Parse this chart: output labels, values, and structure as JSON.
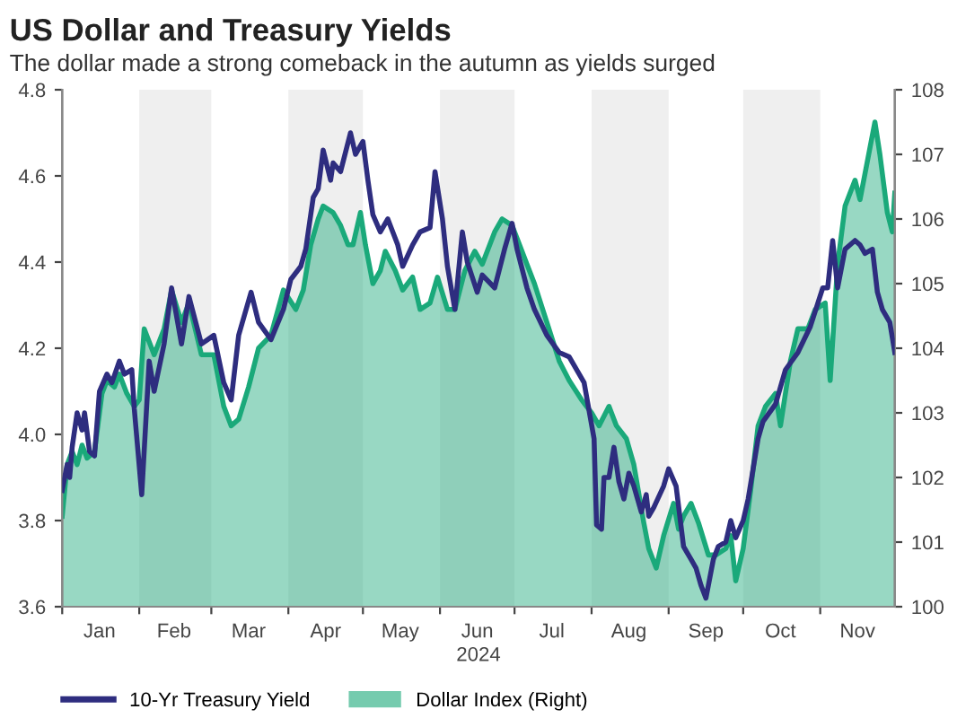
{
  "chart_data": {
    "type": "line",
    "title": "US Dollar and Treasury Yields",
    "subtitle": "The dollar made a strong comeback in the autumn as yields surged",
    "xlabel": "2024",
    "xlim": [
      "2024-01-01",
      "2024-12-01"
    ],
    "xticks": [
      {
        "value": "2024-01-01",
        "label": null
      },
      {
        "value": "2024-01-16",
        "label": "Jan"
      },
      {
        "value": "2024-02-01",
        "label": null
      },
      {
        "value": "2024-02-15",
        "label": "Feb"
      },
      {
        "value": "2024-03-01",
        "label": null
      },
      {
        "value": "2024-03-16",
        "label": "Mar"
      },
      {
        "value": "2024-04-01",
        "label": null
      },
      {
        "value": "2024-04-16",
        "label": "Apr"
      },
      {
        "value": "2024-05-01",
        "label": null
      },
      {
        "value": "2024-05-16",
        "label": "May"
      },
      {
        "value": "2024-06-01",
        "label": null
      },
      {
        "value": "2024-06-16",
        "label": "Jun"
      },
      {
        "value": "2024-07-01",
        "label": null
      },
      {
        "value": "2024-07-16",
        "label": "Jul"
      },
      {
        "value": "2024-08-01",
        "label": null
      },
      {
        "value": "2024-08-16",
        "label": "Aug"
      },
      {
        "value": "2024-09-01",
        "label": null
      },
      {
        "value": "2024-09-16",
        "label": "Sep"
      },
      {
        "value": "2024-10-01",
        "label": null
      },
      {
        "value": "2024-10-16",
        "label": "Oct"
      },
      {
        "value": "2024-11-01",
        "label": null
      },
      {
        "value": "2024-11-16",
        "label": "Nov"
      }
    ],
    "ylim": [
      3.6,
      4.8
    ],
    "yticks": [
      3.6,
      3.8,
      {
        "value": 4,
        "label": "4.0"
      },
      4.2,
      4.4,
      4.6,
      4.8
    ],
    "y2lim": [
      100,
      108
    ],
    "y2ticks": [
      100,
      101,
      102,
      103,
      104,
      105,
      106,
      107,
      108
    ],
    "grid": false,
    "legend": "bottom",
    "bands": [
      {
        "axis": "x",
        "from": "2024-02-01",
        "to": "2024-03-01",
        "color": "#efefef"
      },
      {
        "axis": "x",
        "from": "2024-04-01",
        "to": "2024-05-01",
        "color": "#efefef"
      },
      {
        "axis": "x",
        "from": "2024-06-01",
        "to": "2024-07-01",
        "color": "#efefef"
      },
      {
        "axis": "x",
        "from": "2024-08-01",
        "to": "2024-09-01",
        "color": "#efefef"
      },
      {
        "axis": "x",
        "from": "2024-10-01",
        "to": "2024-11-01",
        "color": "#efefef"
      }
    ],
    "series": [
      {
        "name": "10-Yr Treasury Yield",
        "color": "#2e2d7f",
        "x": [
          "2024-01-01",
          "2024-01-03",
          "2024-01-04",
          "2024-01-05",
          "2024-01-07",
          "2024-01-09",
          "2024-01-10",
          "2024-01-12",
          "2024-01-14",
          "2024-01-16",
          "2024-01-19",
          "2024-01-21",
          "2024-01-24",
          "2024-01-26",
          "2024-01-29",
          "2024-01-30",
          "2024-02-02",
          "2024-02-05",
          "2024-02-07",
          "2024-02-11",
          "2024-02-14",
          "2024-02-18",
          "2024-02-21",
          "2024-02-26",
          "2024-03-02",
          "2024-03-06",
          "2024-03-09",
          "2024-03-12",
          "2024-03-17",
          "2024-03-20",
          "2024-03-25",
          "2024-03-30",
          "2024-04-02",
          "2024-04-06",
          "2024-04-08",
          "2024-04-11",
          "2024-04-13",
          "2024-04-15",
          "2024-04-18",
          "2024-04-19",
          "2024-04-22",
          "2024-04-26",
          "2024-04-28",
          "2024-05-01",
          "2024-05-03",
          "2024-05-05",
          "2024-05-08",
          "2024-05-11",
          "2024-05-15",
          "2024-05-17",
          "2024-05-21",
          "2024-05-24",
          "2024-05-28",
          "2024-05-30",
          "2024-06-02",
          "2024-06-04",
          "2024-06-07",
          "2024-06-10",
          "2024-06-12",
          "2024-06-16",
          "2024-06-18",
          "2024-06-23",
          "2024-06-27",
          "2024-06-30",
          "2024-07-02",
          "2024-07-06",
          "2024-07-09",
          "2024-07-14",
          "2024-07-19",
          "2024-07-23",
          "2024-07-29",
          "2024-08-02",
          "2024-08-03",
          "2024-08-05",
          "2024-08-06",
          "2024-08-08",
          "2024-08-10",
          "2024-08-12",
          "2024-08-14",
          "2024-08-16",
          "2024-08-18",
          "2024-08-21",
          "2024-08-23",
          "2024-08-24",
          "2024-08-26",
          "2024-08-30",
          "2024-09-01",
          "2024-09-04",
          "2024-09-07",
          "2024-09-10",
          "2024-09-12",
          "2024-09-14",
          "2024-09-16",
          "2024-09-19",
          "2024-09-21",
          "2024-09-24",
          "2024-09-26",
          "2024-09-28",
          "2024-10-01",
          "2024-10-03",
          "2024-10-07",
          "2024-10-09",
          "2024-10-14",
          "2024-10-18",
          "2024-10-23",
          "2024-10-28",
          "2024-11-02",
          "2024-11-04",
          "2024-11-06",
          "2024-11-08",
          "2024-11-11",
          "2024-11-15",
          "2024-11-17",
          "2024-11-19",
          "2024-11-22",
          "2024-11-24",
          "2024-11-26",
          "2024-11-29",
          "2024-12-01"
        ],
        "values": [
          3.87,
          3.93,
          3.9,
          3.97,
          4.05,
          4.01,
          4.05,
          3.96,
          3.95,
          4.1,
          4.14,
          4.12,
          4.17,
          4.14,
          4.15,
          4.06,
          3.86,
          4.17,
          4.1,
          4.21,
          4.34,
          4.21,
          4.32,
          4.21,
          4.23,
          4.12,
          4.08,
          4.23,
          4.33,
          4.26,
          4.22,
          4.29,
          4.36,
          4.39,
          4.43,
          4.55,
          4.57,
          4.66,
          4.59,
          4.63,
          4.61,
          4.7,
          4.65,
          4.68,
          4.59,
          4.51,
          4.47,
          4.5,
          4.44,
          4.39,
          4.44,
          4.47,
          4.48,
          4.61,
          4.5,
          4.39,
          4.29,
          4.47,
          4.4,
          4.33,
          4.37,
          4.34,
          4.43,
          4.49,
          4.43,
          4.34,
          4.29,
          4.23,
          4.19,
          4.18,
          4.12,
          3.99,
          3.79,
          3.78,
          3.9,
          3.9,
          3.97,
          3.89,
          3.85,
          3.91,
          3.88,
          3.82,
          3.86,
          3.81,
          3.83,
          3.88,
          3.92,
          3.88,
          3.74,
          3.71,
          3.69,
          3.65,
          3.62,
          3.71,
          3.74,
          3.75,
          3.8,
          3.76,
          3.8,
          3.85,
          3.99,
          4.03,
          4.07,
          4.15,
          4.19,
          4.25,
          4.34,
          4.34,
          4.45,
          4.34,
          4.43,
          4.45,
          4.44,
          4.42,
          4.43,
          4.33,
          4.29,
          4.26,
          4.19
        ]
      },
      {
        "name": "Dollar Index (Right)",
        "type": "area",
        "axis": "y2",
        "color": "#1aa97a",
        "x": [
          "2024-01-01",
          "2024-01-03",
          "2024-01-05",
          "2024-01-07",
          "2024-01-09",
          "2024-01-11",
          "2024-01-14",
          "2024-01-17",
          "2024-01-19",
          "2024-01-22",
          "2024-01-24",
          "2024-01-27",
          "2024-01-30",
          "2024-02-01",
          "2024-02-03",
          "2024-02-07",
          "2024-02-11",
          "2024-02-14",
          "2024-02-18",
          "2024-02-21",
          "2024-02-26",
          "2024-03-02",
          "2024-03-06",
          "2024-03-09",
          "2024-03-12",
          "2024-03-16",
          "2024-03-20",
          "2024-03-25",
          "2024-03-30",
          "2024-04-04",
          "2024-04-07",
          "2024-04-10",
          "2024-04-13",
          "2024-04-15",
          "2024-04-19",
          "2024-04-22",
          "2024-04-25",
          "2024-04-27",
          "2024-04-30",
          "2024-05-02",
          "2024-05-05",
          "2024-05-08",
          "2024-05-10",
          "2024-05-14",
          "2024-05-17",
          "2024-05-21",
          "2024-05-24",
          "2024-05-28",
          "2024-05-31",
          "2024-06-04",
          "2024-06-07",
          "2024-06-11",
          "2024-06-15",
          "2024-06-18",
          "2024-06-23",
          "2024-06-26",
          "2024-06-30",
          "2024-07-02",
          "2024-07-06",
          "2024-07-09",
          "2024-07-14",
          "2024-07-19",
          "2024-07-23",
          "2024-07-28",
          "2024-08-01",
          "2024-08-04",
          "2024-08-08",
          "2024-08-11",
          "2024-08-15",
          "2024-08-18",
          "2024-08-22",
          "2024-08-24",
          "2024-08-27",
          "2024-08-30",
          "2024-09-03",
          "2024-09-05",
          "2024-09-07",
          "2024-09-10",
          "2024-09-13",
          "2024-09-17",
          "2024-09-20",
          "2024-09-24",
          "2024-09-26",
          "2024-09-28",
          "2024-10-01",
          "2024-10-04",
          "2024-10-07",
          "2024-10-10",
          "2024-10-14",
          "2024-10-16",
          "2024-10-20",
          "2024-10-23",
          "2024-10-27",
          "2024-10-30",
          "2024-11-03",
          "2024-11-05",
          "2024-11-08",
          "2024-11-11",
          "2024-11-15",
          "2024-11-17",
          "2024-11-21",
          "2024-11-23",
          "2024-11-25",
          "2024-11-28",
          "2024-11-30",
          "2024-12-01"
        ],
        "values": [
          101.4,
          102.2,
          102.4,
          102.2,
          102.5,
          102.3,
          102.4,
          103.3,
          103.5,
          103.4,
          103.6,
          103.3,
          103.1,
          103.2,
          104.3,
          103.9,
          104.3,
          104.9,
          104.4,
          104.7,
          103.9,
          103.9,
          103.1,
          102.8,
          102.9,
          103.4,
          104.0,
          104.2,
          104.9,
          104.6,
          104.9,
          105.6,
          106.0,
          106.2,
          106.1,
          105.9,
          105.6,
          105.6,
          106.1,
          105.6,
          105.0,
          105.2,
          105.5,
          105.2,
          104.9,
          105.1,
          104.6,
          104.7,
          105.1,
          104.6,
          104.6,
          105.2,
          105.5,
          105.3,
          105.8,
          106.0,
          105.9,
          105.7,
          105.3,
          105.0,
          104.4,
          103.8,
          103.5,
          103.2,
          103.0,
          102.8,
          103.1,
          102.8,
          102.6,
          102.2,
          101.3,
          100.9,
          100.6,
          101.1,
          101.6,
          101.2,
          101.4,
          101.6,
          101.3,
          100.8,
          100.8,
          100.9,
          101.1,
          100.4,
          100.9,
          101.8,
          102.8,
          103.1,
          103.3,
          102.8,
          103.8,
          104.3,
          104.3,
          104.6,
          104.7,
          103.5,
          105.3,
          106.2,
          106.6,
          106.3,
          107.1,
          107.5,
          107.0,
          106.1,
          105.8,
          106.4
        ]
      }
    ]
  }
}
